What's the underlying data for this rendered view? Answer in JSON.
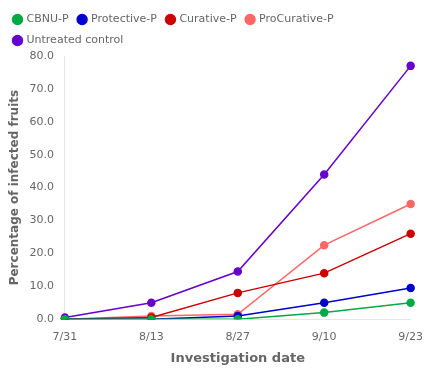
{
  "chart_data": {
    "type": "line",
    "xlabel": "Investigation date",
    "ylabel": "Percentage of infected fruits",
    "categories": [
      "7/31",
      "8/13",
      "8/27",
      "9/10",
      "9/23"
    ],
    "series": [
      {
        "name": "CBNU-P",
        "color": "#00aa44",
        "values": [
          0.0,
          0.0,
          0.0,
          2.0,
          5.0
        ]
      },
      {
        "name": "Protective-P",
        "color": "#0000cc",
        "values": [
          0.0,
          0.0,
          1.0,
          5.0,
          9.5
        ]
      },
      {
        "name": "Curative-P",
        "color": "#cc0000",
        "values": [
          0.0,
          0.5,
          8.0,
          14.0,
          26.0
        ]
      },
      {
        "name": "ProCurative-P",
        "color": "#ff6666",
        "values": [
          0.0,
          1.0,
          1.5,
          22.5,
          35.0
        ]
      },
      {
        "name": "Untreated control",
        "color": "#6600cc",
        "values": [
          0.5,
          5.0,
          14.5,
          44.0,
          77.0
        ]
      }
    ],
    "ylim": [
      0,
      80
    ],
    "yticks": [
      {
        "value": 0,
        "label": "0.0"
      },
      {
        "value": 10,
        "label": "10.0"
      },
      {
        "value": 20,
        "label": "20.0"
      },
      {
        "value": 30,
        "label": "30.0"
      },
      {
        "value": 40,
        "label": "40.0"
      },
      {
        "value": 50,
        "label": "50.0"
      },
      {
        "value": 60,
        "label": "60.0"
      },
      {
        "value": 70,
        "label": "70.0"
      },
      {
        "value": 80,
        "label": "80.0"
      }
    ],
    "marker": "circle",
    "line_style": "solid",
    "grid": false,
    "legend": "upper left"
  }
}
